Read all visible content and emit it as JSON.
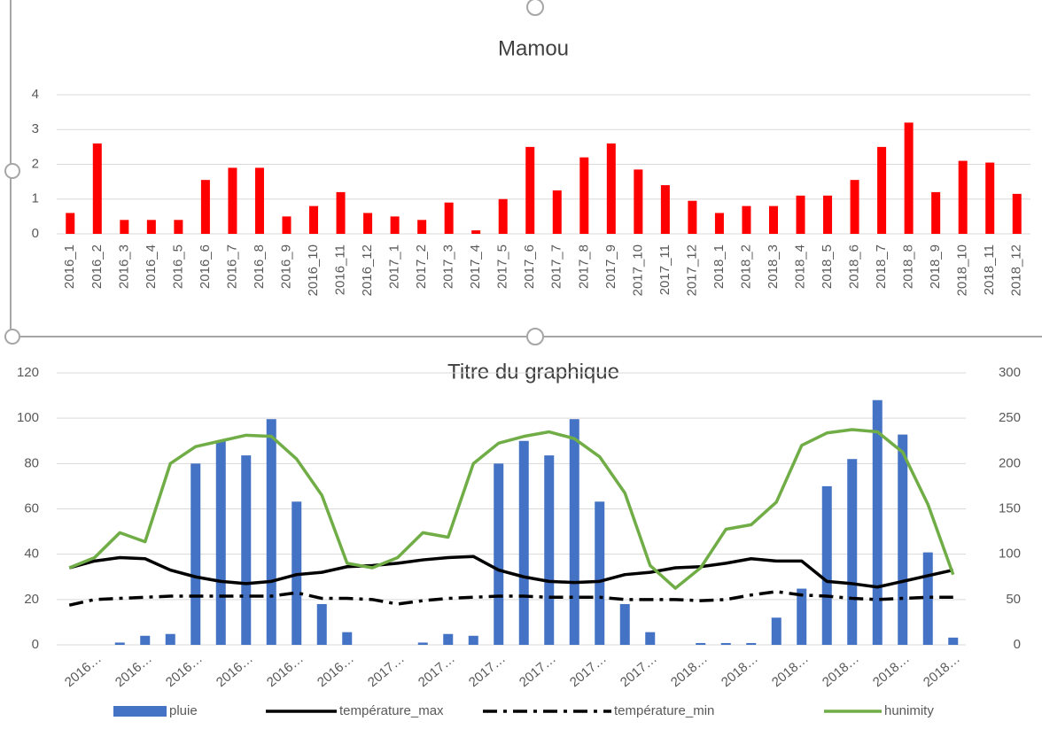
{
  "chart_data": [
    {
      "type": "bar",
      "title": "Mamou",
      "categories": [
        "2016_1",
        "2016_2",
        "2016_3",
        "2016_4",
        "2016_5",
        "2016_6",
        "2016_7",
        "2016_8",
        "2016_9",
        "2016_10",
        "2016_11",
        "2016_12",
        "2017_1",
        "2017_2",
        "2017_3",
        "2017_4",
        "2017_5",
        "2017_6",
        "2017_7",
        "2017_8",
        "2017_9",
        "2017_10",
        "2017_11",
        "2017_12",
        "2018_1",
        "2018_2",
        "2018_3",
        "2018_4",
        "2018_5",
        "2018_6",
        "2018_7",
        "2018_8",
        "2018_9",
        "2018_10",
        "2018_11",
        "2018_12"
      ],
      "values": [
        0.6,
        2.6,
        0.4,
        0.4,
        0.4,
        1.55,
        1.9,
        1.9,
        0.5,
        0.8,
        1.2,
        0.6,
        0.5,
        0.4,
        0.9,
        0.1,
        1.0,
        2.5,
        1.25,
        2.2,
        2.6,
        1.85,
        1.4,
        0.95,
        0.6,
        0.8,
        0.8,
        1.1,
        1.1,
        1.55,
        2.5,
        3.2,
        1.2,
        2.1,
        2.05,
        1.15
      ],
      "color": "#ff0000",
      "ylim": [
        0,
        4
      ],
      "yticks": [
        0,
        1,
        2,
        3,
        4
      ],
      "grid": true
    },
    {
      "type": "combo",
      "title": "Titre du graphique",
      "categories": [
        null,
        "2016…",
        null,
        "2016…",
        null,
        "2016…",
        null,
        "2016…",
        null,
        "2016…",
        null,
        "2016…",
        null,
        "2017…",
        null,
        "2017…",
        null,
        "2017…",
        null,
        "2017…",
        null,
        "2017…",
        null,
        "2017…",
        null,
        "2018…",
        null,
        "2018…",
        null,
        "2018…",
        null,
        "2018…",
        null,
        "2018…",
        null,
        "2018…"
      ],
      "series": [
        {
          "name": "pluie",
          "type": "bar",
          "axis": "y2",
          "color": "#4472c4",
          "values": [
            0,
            0,
            2.5,
            10,
            12,
            200,
            225,
            209,
            249,
            158,
            45,
            14,
            0,
            0,
            2.5,
            12,
            10,
            200,
            225,
            209,
            249,
            158,
            45,
            14,
            0,
            2,
            2,
            2,
            30,
            62,
            175,
            205,
            270,
            232,
            102,
            8
          ]
        },
        {
          "name": "température_max",
          "type": "line",
          "color": "#000000",
          "dash": "solid",
          "values": [
            34,
            37,
            38.5,
            38,
            33,
            30,
            28,
            27,
            28,
            31,
            32,
            34.5,
            35,
            36,
            37.5,
            38.5,
            39,
            33,
            30,
            28,
            27.5,
            28,
            31,
            32,
            34,
            34.5,
            36,
            38,
            37,
            37,
            28,
            27,
            25.5,
            28,
            30.5,
            33
          ]
        },
        {
          "name": "température_min",
          "type": "line",
          "color": "#000000",
          "dash": "dashdot",
          "values": [
            17.5,
            20,
            20.5,
            21,
            21.5,
            21.5,
            21.5,
            21.5,
            21.5,
            23,
            20.5,
            20.5,
            20,
            18,
            19.5,
            20.5,
            21,
            21.5,
            21.5,
            21,
            21,
            21,
            20,
            20,
            20,
            19.5,
            20,
            22,
            23.5,
            22,
            21.5,
            20.5,
            20,
            20.5,
            21,
            21
          ]
        },
        {
          "name": "hunimity",
          "type": "line",
          "color": "#70ad47",
          "dash": "solid",
          "values": [
            34,
            38.5,
            49.5,
            45.5,
            80,
            87.5,
            90,
            92.5,
            92,
            82,
            66,
            36,
            34,
            38.5,
            49.5,
            47.5,
            80,
            89,
            92,
            94,
            91,
            83,
            67,
            35,
            25,
            34,
            51,
            53,
            63,
            88,
            93.5,
            95,
            94,
            85,
            62,
            31
          ]
        }
      ],
      "ylim": [
        0,
        120
      ],
      "yticks": [
        0,
        20,
        40,
        60,
        80,
        100,
        120
      ],
      "y2lim": [
        0,
        300
      ],
      "y2ticks": [
        0,
        50,
        100,
        150,
        200,
        250,
        300
      ],
      "grid": true,
      "legend": "bottom"
    }
  ]
}
